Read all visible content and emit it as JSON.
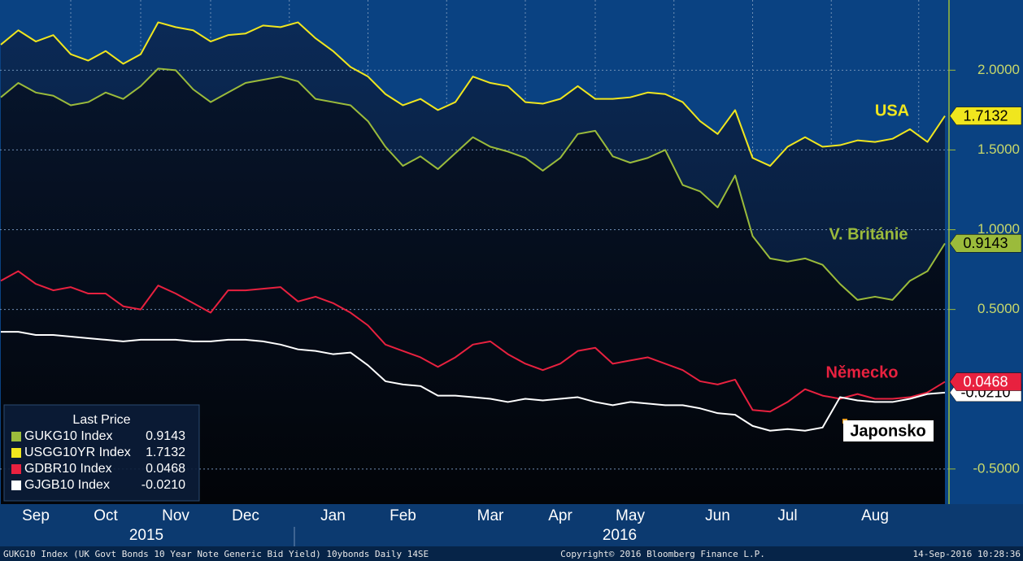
{
  "chart_data": {
    "type": "line",
    "categories": [
      null,
      null,
      "Sep",
      null,
      null,
      null,
      "Oct",
      null,
      null,
      null,
      "Nov",
      null,
      null,
      null,
      "Dec",
      null,
      null,
      null,
      null,
      "Jan",
      null,
      null,
      null,
      "Feb",
      null,
      null,
      null,
      null,
      "Mar",
      null,
      null,
      null,
      "Apr",
      null,
      null,
      null,
      "May",
      null,
      null,
      null,
      null,
      "Jun",
      null,
      null,
      null,
      "Jul",
      null,
      null,
      null,
      null,
      "Aug",
      null,
      null,
      null,
      null
    ],
    "year_labels": [
      "2015",
      "2016"
    ],
    "ylim": [
      -0.72,
      2.44
    ],
    "yticks": [
      {
        "value": -0.5,
        "label": "-0.5000"
      },
      {
        "value": 0.5,
        "label": "0.5000"
      },
      {
        "value": 1,
        "label": "1.0000"
      },
      {
        "value": 1.5,
        "label": "1.5000"
      },
      {
        "value": 2,
        "label": "2.0000"
      }
    ],
    "grid": true,
    "legend": {
      "title": "Last Price",
      "corner": "bottom-left"
    },
    "series": [
      {
        "name": "GUKG10 Index",
        "color": "#9bbb3b",
        "annotation": "V. Británie",
        "values": [
          1.83,
          1.92,
          1.86,
          1.84,
          1.78,
          1.8,
          1.86,
          1.82,
          1.9,
          2.01,
          2.0,
          1.88,
          1.8,
          1.86,
          1.92,
          1.94,
          1.96,
          1.93,
          1.82,
          1.8,
          1.78,
          1.68,
          1.52,
          1.4,
          1.46,
          1.38,
          1.48,
          1.58,
          1.52,
          1.49,
          1.45,
          1.37,
          1.45,
          1.6,
          1.62,
          1.46,
          1.42,
          1.45,
          1.5,
          1.28,
          1.24,
          1.14,
          1.34,
          0.96,
          0.82,
          0.8,
          0.82,
          0.78,
          0.66,
          0.56,
          0.58,
          0.56,
          0.68,
          0.74,
          0.9143
        ],
        "value_labels": [
          null,
          null,
          null,
          null,
          null,
          null,
          null,
          null,
          null,
          null,
          null,
          null,
          null,
          null,
          null,
          null,
          null,
          null,
          null,
          null,
          null,
          null,
          null,
          null,
          null,
          null,
          null,
          null,
          null,
          null,
          null,
          null,
          null,
          null,
          null,
          null,
          null,
          null,
          null,
          null,
          null,
          null,
          null,
          null,
          null,
          null,
          null,
          null,
          null,
          null,
          null,
          null,
          null,
          null,
          "0.9143"
        ]
      },
      {
        "name": "USGG10YR Index",
        "color": "#f0e61e",
        "annotation": "USA",
        "values": [
          2.16,
          2.25,
          2.18,
          2.22,
          2.1,
          2.06,
          2.12,
          2.04,
          2.1,
          2.3,
          2.27,
          2.25,
          2.18,
          2.22,
          2.23,
          2.28,
          2.27,
          2.3,
          2.2,
          2.12,
          2.02,
          1.96,
          1.85,
          1.78,
          1.82,
          1.75,
          1.8,
          1.96,
          1.92,
          1.9,
          1.8,
          1.79,
          1.82,
          1.9,
          1.82,
          1.82,
          1.83,
          1.86,
          1.85,
          1.8,
          1.68,
          1.6,
          1.75,
          1.45,
          1.4,
          1.52,
          1.58,
          1.52,
          1.53,
          1.56,
          1.55,
          1.57,
          1.63,
          1.55,
          1.7132
        ],
        "value_labels": [
          null,
          null,
          null,
          null,
          null,
          null,
          null,
          null,
          null,
          null,
          null,
          null,
          null,
          null,
          null,
          null,
          null,
          null,
          null,
          null,
          null,
          null,
          null,
          null,
          null,
          null,
          null,
          null,
          null,
          null,
          null,
          null,
          null,
          null,
          null,
          null,
          null,
          null,
          null,
          null,
          null,
          null,
          null,
          null,
          null,
          null,
          null,
          null,
          null,
          null,
          null,
          null,
          null,
          null,
          "1.7132"
        ]
      },
      {
        "name": "GDBR10 Index",
        "color": "#e8213f",
        "annotation": "Německo",
        "values": [
          0.68,
          0.74,
          0.66,
          0.62,
          0.64,
          0.6,
          0.6,
          0.52,
          0.5,
          0.65,
          0.6,
          0.54,
          0.48,
          0.62,
          0.62,
          0.63,
          0.64,
          0.55,
          0.58,
          0.54,
          0.48,
          0.4,
          0.28,
          0.24,
          0.2,
          0.14,
          0.2,
          0.28,
          0.3,
          0.22,
          0.16,
          0.12,
          0.16,
          0.24,
          0.26,
          0.16,
          0.18,
          0.2,
          0.16,
          0.12,
          0.05,
          0.03,
          0.06,
          -0.13,
          -0.14,
          -0.08,
          0.0,
          -0.04,
          -0.06,
          -0.03,
          -0.06,
          -0.06,
          -0.05,
          -0.02,
          0.0468
        ],
        "value_labels": [
          null,
          null,
          null,
          null,
          null,
          null,
          null,
          null,
          null,
          null,
          null,
          null,
          null,
          null,
          null,
          null,
          null,
          null,
          null,
          null,
          null,
          null,
          null,
          null,
          null,
          null,
          null,
          null,
          null,
          null,
          null,
          null,
          null,
          null,
          null,
          null,
          null,
          null,
          null,
          null,
          null,
          null,
          null,
          null,
          null,
          null,
          null,
          null,
          null,
          null,
          null,
          null,
          null,
          null,
          "0.0468"
        ]
      },
      {
        "name": "GJGB10 Index",
        "color": "#ffffff",
        "annotation": "Japonsko",
        "values": [
          0.36,
          0.36,
          0.34,
          0.34,
          0.33,
          0.32,
          0.31,
          0.3,
          0.31,
          0.31,
          0.31,
          0.3,
          0.3,
          0.31,
          0.31,
          0.3,
          0.28,
          0.25,
          0.24,
          0.22,
          0.23,
          0.15,
          0.05,
          0.03,
          0.02,
          -0.04,
          -0.04,
          -0.05,
          -0.06,
          -0.08,
          -0.06,
          -0.07,
          -0.06,
          -0.05,
          -0.08,
          -0.1,
          -0.08,
          -0.09,
          -0.1,
          -0.1,
          -0.12,
          -0.15,
          -0.16,
          -0.23,
          -0.26,
          -0.25,
          -0.26,
          -0.24,
          -0.05,
          -0.07,
          -0.08,
          -0.08,
          -0.06,
          -0.03,
          -0.021
        ],
        "value_labels": [
          null,
          null,
          null,
          null,
          null,
          null,
          null,
          null,
          null,
          null,
          null,
          null,
          null,
          null,
          null,
          null,
          null,
          null,
          null,
          null,
          null,
          null,
          null,
          null,
          null,
          null,
          null,
          null,
          null,
          null,
          null,
          null,
          null,
          null,
          null,
          null,
          null,
          null,
          null,
          null,
          null,
          null,
          null,
          null,
          null,
          null,
          null,
          null,
          null,
          null,
          null,
          null,
          null,
          null,
          "-0.0210"
        ]
      }
    ],
    "footer": {
      "left": "GUKG10 Index (UK Govt Bonds 10 Year Note Generic Bid Yield) 10ybonds  Daily 14SE",
      "center": "Copyright© 2016 Bloomberg Finance L.P.",
      "right": "14-Sep-2016 10:28:36"
    }
  }
}
